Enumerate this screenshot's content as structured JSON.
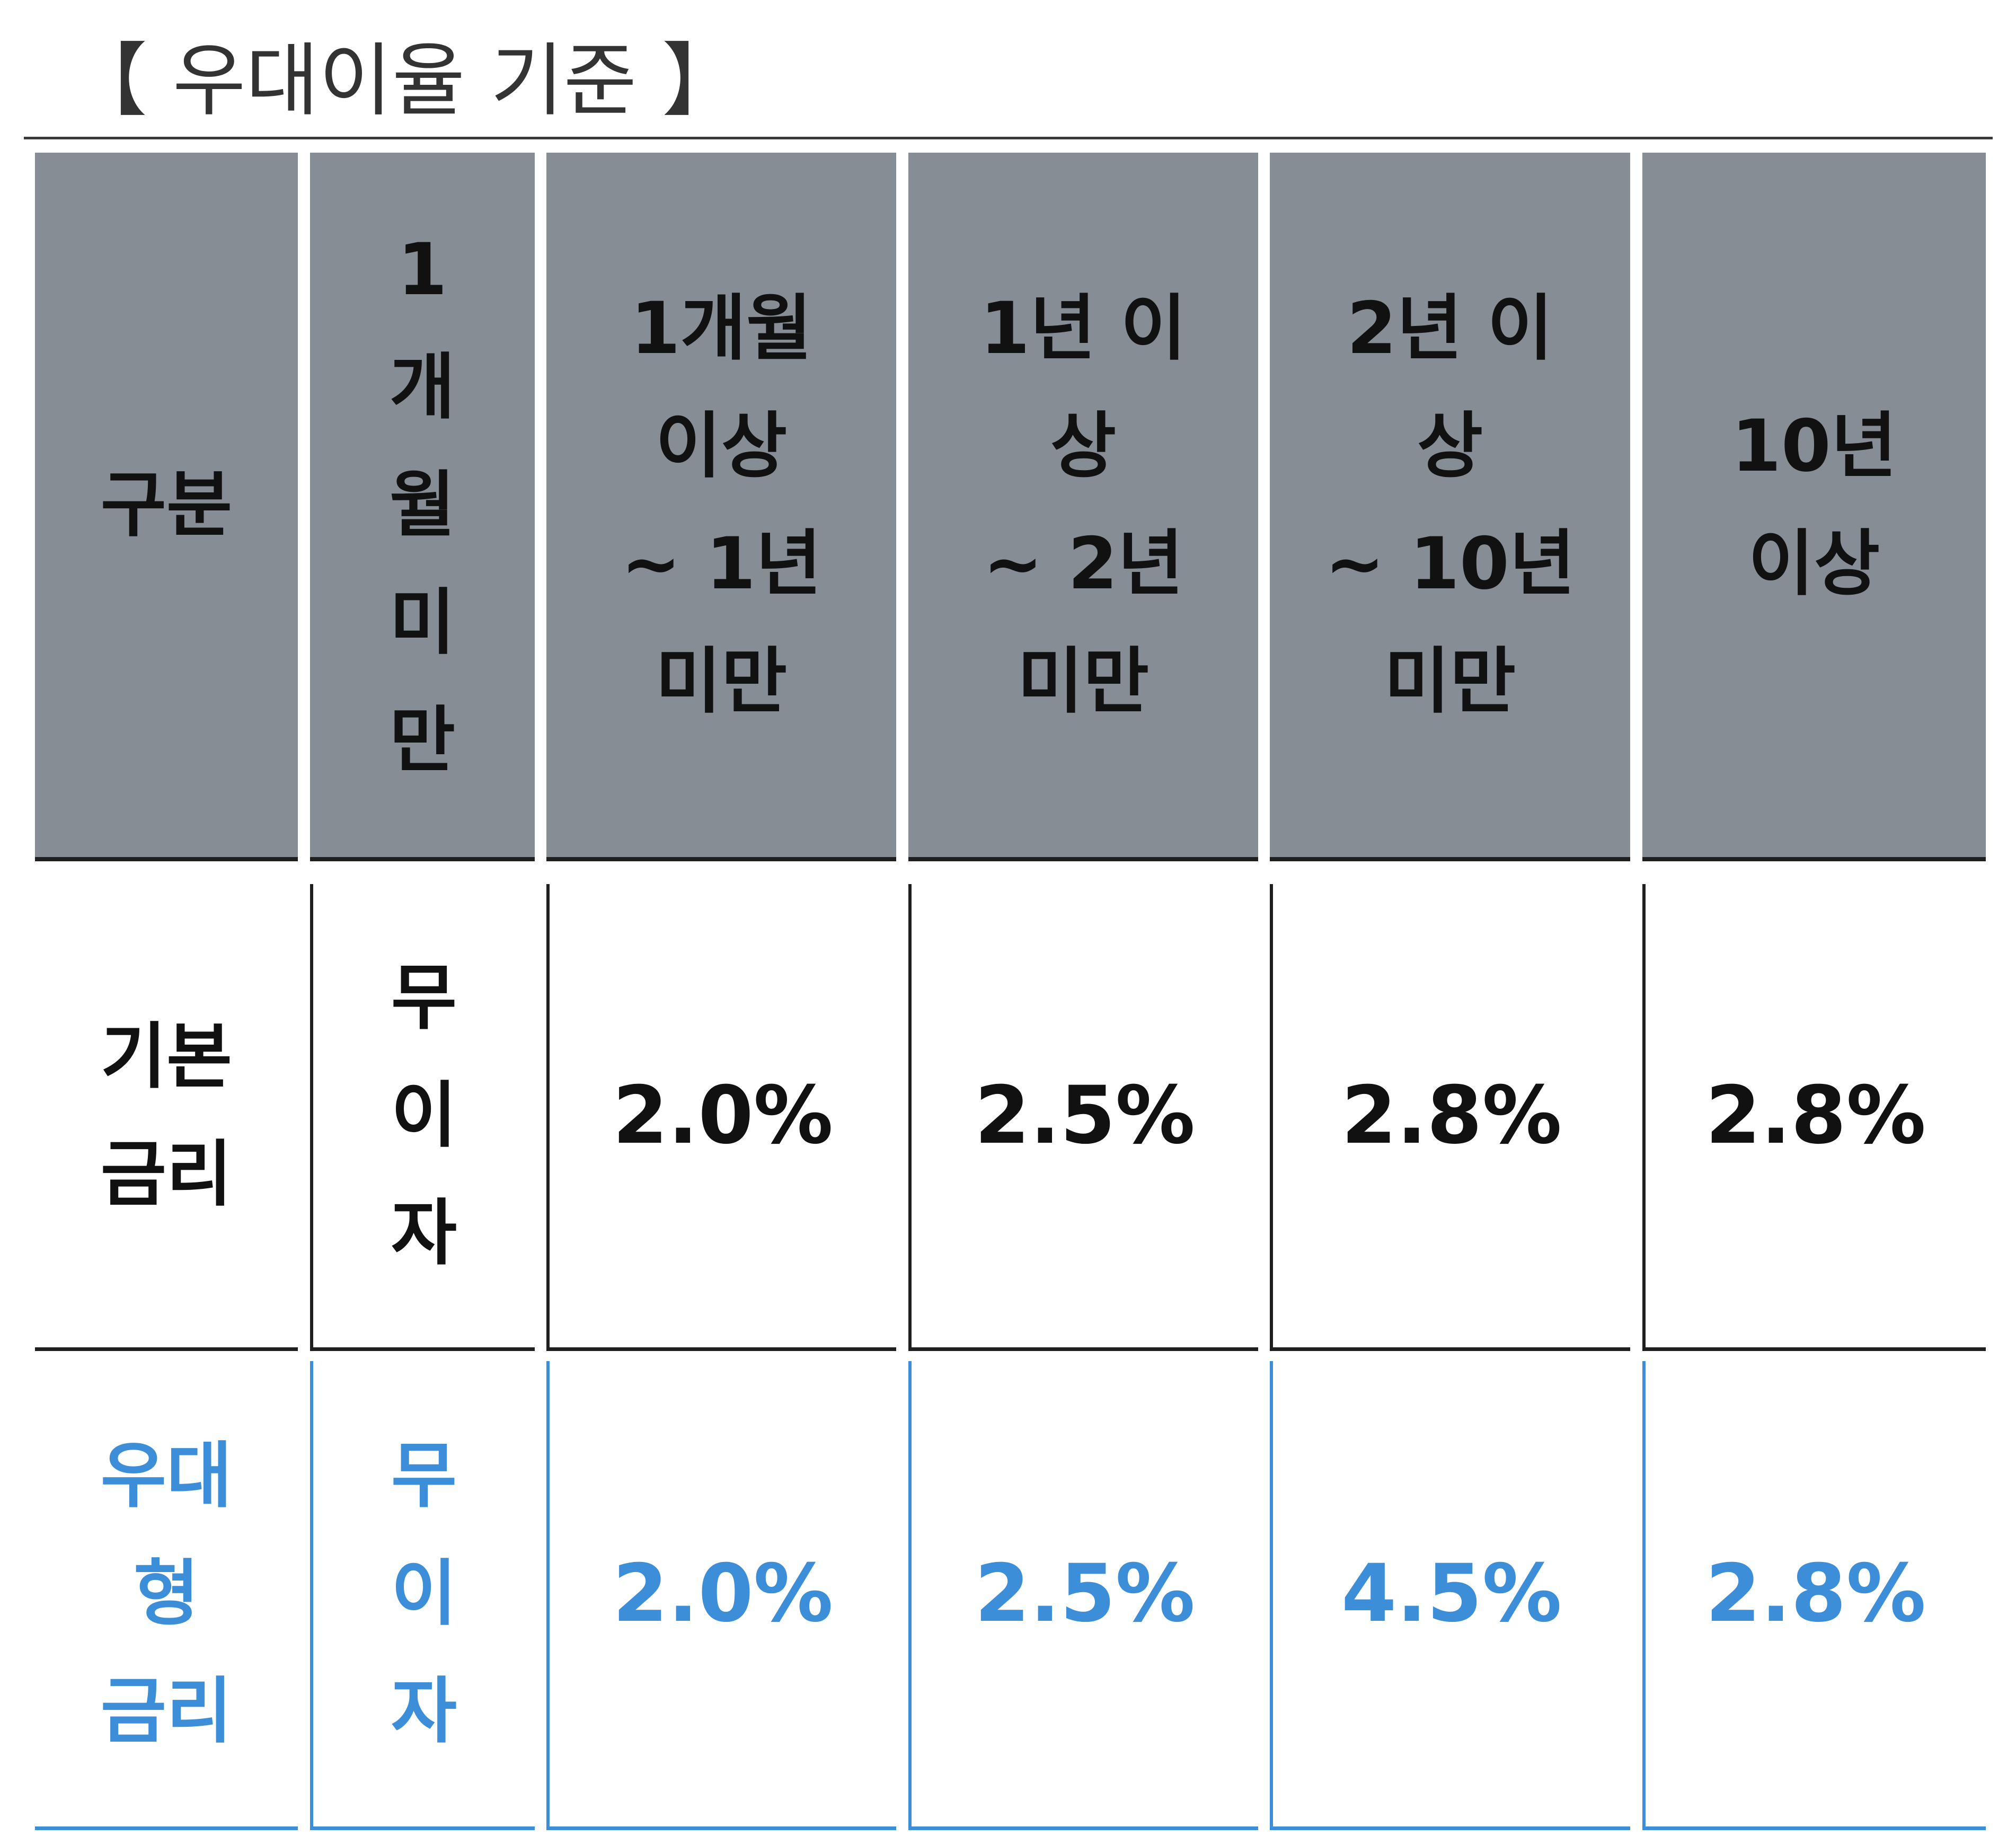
{
  "title": "【 우대이율 기준 】",
  "colors": {
    "header_bg": "#878d94",
    "border_dark": "#1f1f1f",
    "accent_blue": "#3d8ed8",
    "text_dark": "#111111"
  },
  "table": {
    "headers": [
      "구분",
      "1\n개\n월\n미\n만",
      "1개월\n이상\n~ 1년\n미만",
      "1년 이\n상\n~ 2년\n미만",
      "2년 이\n상\n~ 10년\n미만",
      "10년\n이상"
    ],
    "rows": [
      {
        "label": "기본\n금리",
        "cells": [
          "무\n이\n자",
          "2.0%",
          "2.5%",
          "2.8%",
          "2.8%"
        ]
      },
      {
        "label": "우대\n형\n금리",
        "cells": [
          "무\n이\n자",
          "2.0%",
          "2.5%",
          "4.5%",
          "2.8%"
        ]
      }
    ]
  }
}
